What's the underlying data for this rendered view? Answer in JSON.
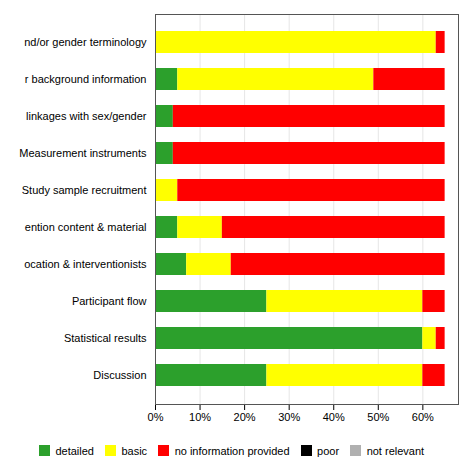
{
  "chart_data": {
    "type": "bar",
    "orientation": "horizontal",
    "stacked": true,
    "categories": [
      "nd/or gender terminology",
      "r background information",
      "linkages with sex/gender",
      "Measurement instruments",
      "Study sample recruitment",
      "ention content & material",
      "ocation & interventionists",
      "Participant flow",
      "Statistical results",
      "Discussion"
    ],
    "series": [
      {
        "name": "detailed",
        "color": "#2ca02c",
        "values": [
          0,
          5,
          4,
          4,
          0,
          5,
          7,
          25,
          60,
          25
        ]
      },
      {
        "name": "basic",
        "color": "#ffff00",
        "values": [
          63,
          44,
          0,
          0,
          5,
          10,
          10,
          35,
          3,
          35
        ]
      },
      {
        "name": "no information provided",
        "color": "#ff0000",
        "values": [
          2,
          16,
          61,
          61,
          60,
          50,
          48,
          5,
          2,
          5
        ]
      },
      {
        "name": "poor",
        "color": "#000000",
        "values": [
          0,
          0,
          0,
          0,
          0,
          0,
          0,
          0,
          0,
          0
        ]
      },
      {
        "name": "not relevant",
        "color": "#b0b0b0",
        "values": [
          0,
          0,
          0,
          0,
          0,
          0,
          0,
          0,
          0,
          0
        ]
      }
    ],
    "xlim": [
      0,
      68
    ],
    "xticks": [
      {
        "value": 0,
        "label": "0%"
      },
      {
        "value": 10,
        "label": "10%"
      },
      {
        "value": 20,
        "label": "20%"
      },
      {
        "value": 30,
        "label": "30%"
      },
      {
        "value": 40,
        "label": "40%"
      },
      {
        "value": 50,
        "label": "50%"
      },
      {
        "value": 60,
        "label": "60%"
      }
    ],
    "grid": true,
    "legend": "bottom"
  }
}
